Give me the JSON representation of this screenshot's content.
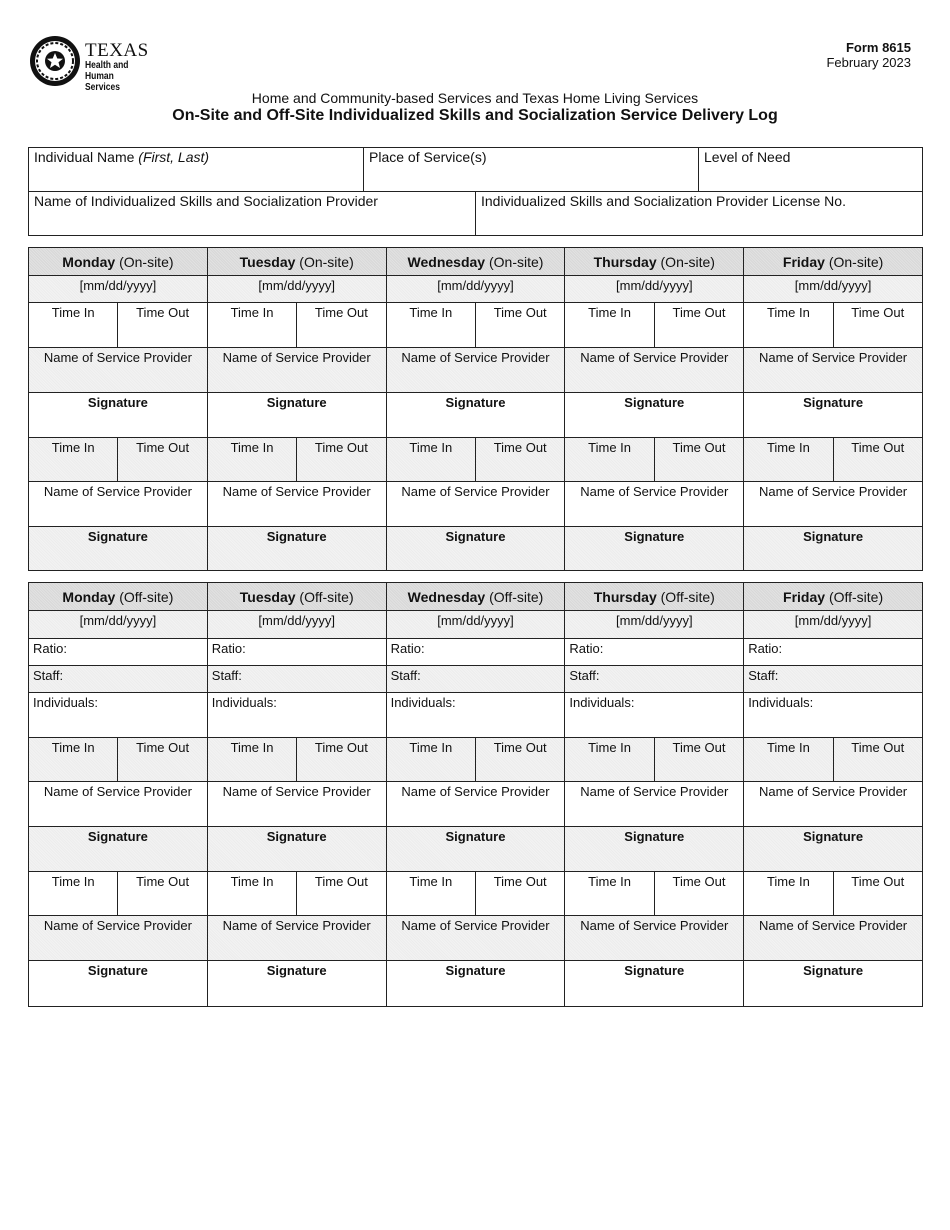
{
  "header": {
    "logo": {
      "icon": "texas-seal-icon",
      "line1": "TEXAS",
      "line2": "Health and Human",
      "line3": "Services"
    },
    "form_number": "Form 8615",
    "form_date": "February 2023",
    "program": "Home and Community-based Services and Texas Home Living Services",
    "title": "On-Site and Off-Site Individualized Skills and Socialization Service Delivery Log"
  },
  "info": {
    "individual_name": "Individual Name",
    "individual_name_hint": "(First, Last)",
    "place_of_service": "Place of Service(s)",
    "level_of_need": "Level of Need",
    "provider_name": "Name of Individualized Skills and Socialization Provider",
    "provider_license": "Individualized Skills and Socialization Provider License No."
  },
  "days": [
    "Monday",
    "Tuesday",
    "Wednesday",
    "Thursday",
    "Friday"
  ],
  "onsite_suffix": "(On-site)",
  "offsite_suffix": "(Off-site)",
  "labels": {
    "date": "[mm/dd/yyyy]",
    "time_in": "Time In",
    "time_out": "Time Out",
    "provider": "Name of Service Provider",
    "signature": "Signature",
    "ratio": "Ratio:",
    "staff": "Staff:",
    "individuals": "Individuals:"
  },
  "colors": {
    "header_shade": "#d8d8d8",
    "row_shade": "#ececec"
  }
}
